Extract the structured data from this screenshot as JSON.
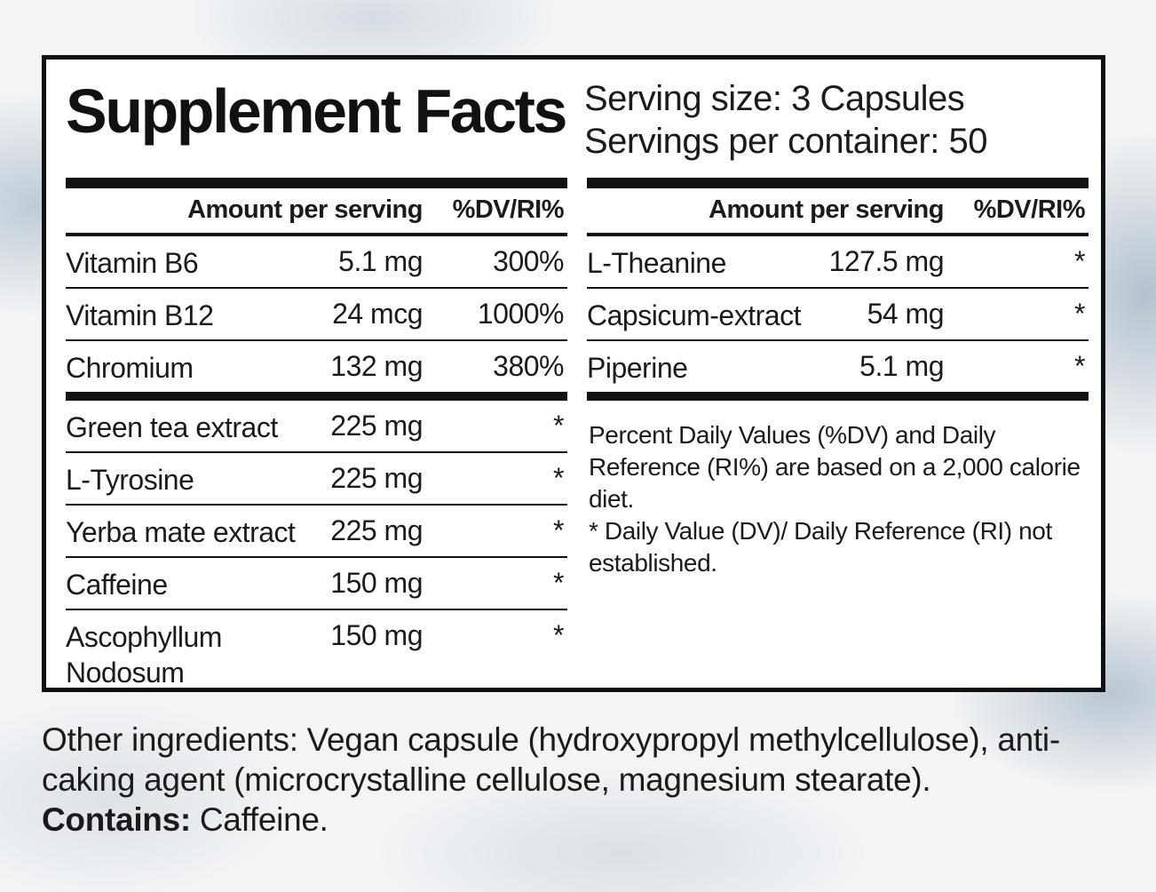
{
  "title": "Supplement Facts",
  "serving_size": "Serving size: 3 Capsules",
  "servings_per_container": "Servings per container: 50",
  "headers": {
    "amount": "Amount per serving",
    "dv": "%DV/RI%"
  },
  "left_rows": [
    {
      "name": "Vitamin B6",
      "amount": "5.1 mg",
      "dv": "300%"
    },
    {
      "name": "Vitamin B12",
      "amount": "24 mcg",
      "dv": "1000%"
    },
    {
      "name": "Chromium",
      "amount": "132 mg",
      "dv": "380%"
    },
    {
      "name": "Green tea extract",
      "amount": "225 mg",
      "dv": "*"
    },
    {
      "name": "L-Tyrosine",
      "amount": "225 mg",
      "dv": "*"
    },
    {
      "name": "Yerba mate extract",
      "amount": "225 mg",
      "dv": "*"
    },
    {
      "name": "Caffeine",
      "amount": "150 mg",
      "dv": "*"
    },
    {
      "name": "Ascophyllum Nodosum",
      "amount": "150 mg",
      "dv": "*"
    }
  ],
  "right_rows": [
    {
      "name": "L-Theanine",
      "amount": "127.5 mg",
      "dv": "*"
    },
    {
      "name": "Capsicum-extract",
      "amount": "54 mg",
      "dv": "*"
    },
    {
      "name": "Piperine",
      "amount": "5.1 mg",
      "dv": "*"
    }
  ],
  "footnote_1": "Percent Daily Values (%DV) and Daily Reference (RI%) are based on a 2,000 calorie diet.",
  "footnote_2": "* Daily Value (DV)/ Daily Reference (RI) not established.",
  "other_ingredients": "Other ingredients: Vegan capsule (hydroxypropyl methylcellulose), anti-caking agent (microcrystalline cellulose, magnesium stearate).",
  "contains_label": "Contains:",
  "contains_value": " Caffeine."
}
